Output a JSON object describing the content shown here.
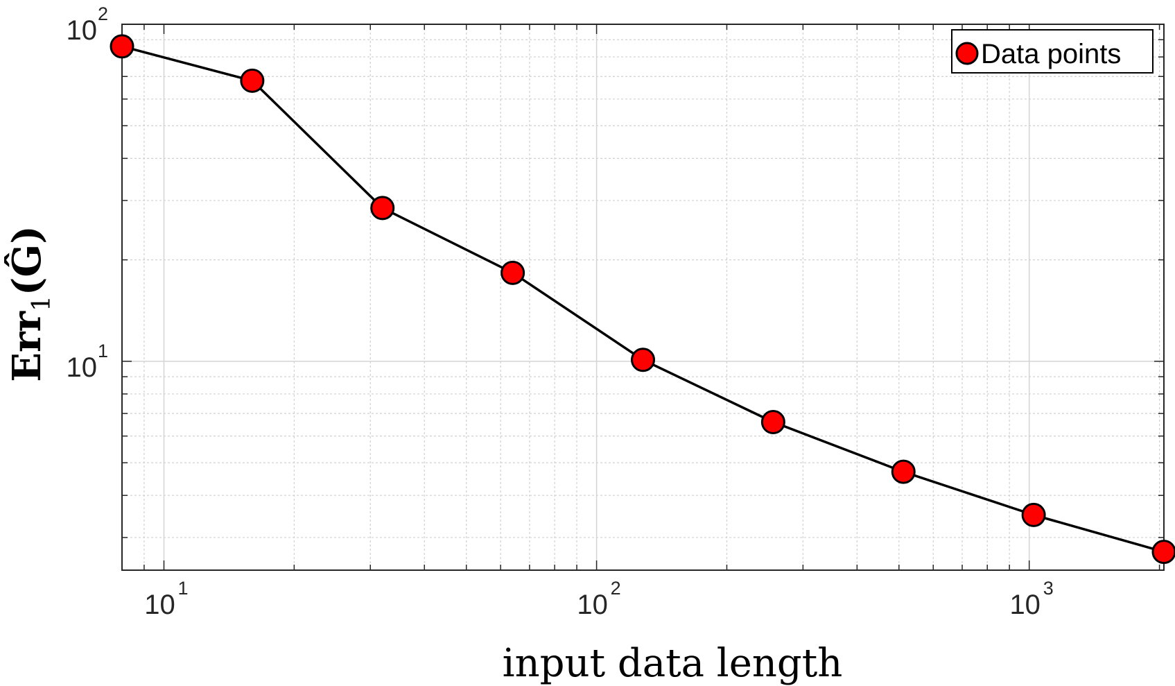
{
  "chart_data": {
    "type": "line",
    "xscale": "log",
    "yscale": "log",
    "xlim": [
      8,
      2048
    ],
    "ylim": [
      2.4,
      100
    ],
    "grid": true,
    "minor_grid": true,
    "x_ticks": [
      {
        "value": 10,
        "base": "10",
        "exp": "1"
      },
      {
        "value": 100,
        "base": "10",
        "exp": "2"
      },
      {
        "value": 1000,
        "base": "10",
        "exp": "3"
      }
    ],
    "y_ticks": [
      {
        "value": 10,
        "base": "10",
        "exp": "1"
      },
      {
        "value": 100,
        "base": "10",
        "exp": "2"
      }
    ],
    "xlabel": "input data length",
    "ylabel": {
      "main": "Err",
      "subscript": "1",
      "argument": "Ĝ"
    },
    "legend": {
      "position": "top-right",
      "entries": [
        "Data points"
      ]
    },
    "series": [
      {
        "name": "Data points",
        "line_color": "#000000",
        "marker": "circle",
        "marker_face": "#ff0000",
        "marker_edge": "#000000",
        "x": [
          8,
          16,
          32,
          64,
          128,
          256,
          512,
          1024,
          2048
        ],
        "y": [
          86,
          68,
          28.5,
          18.3,
          10.1,
          6.6,
          4.7,
          3.5,
          2.72
        ]
      }
    ]
  }
}
